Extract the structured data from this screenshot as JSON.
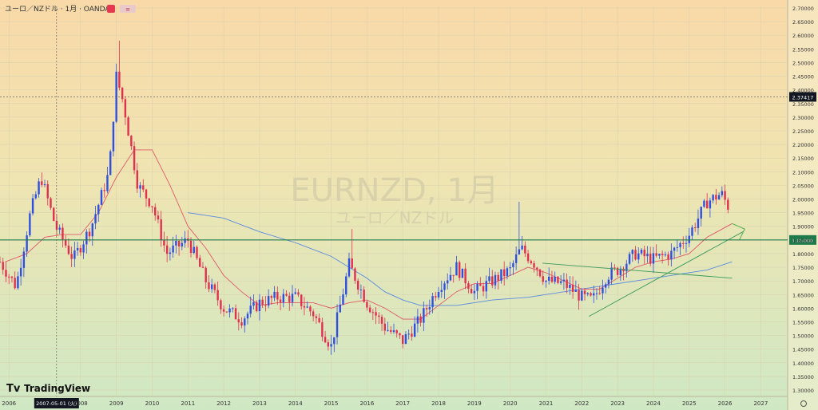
{
  "header": {
    "symbol_title": "ユーロ／NZドル · 1月 · OANDA",
    "badge_text": "≡"
  },
  "watermark": {
    "line1": "EURNZD, 1月",
    "line2": "ユーロ／NZドル"
  },
  "brand": {
    "logo_text": "TradingView"
  },
  "crosshair": {
    "date_label": "2007-05-01 (火)",
    "price_label": "2.37417"
  },
  "colors": {
    "up": "#2f4fe0",
    "down": "#e03050",
    "ma_short": "#e05a6a",
    "ma_long": "#5a8ae0",
    "hline": "#1e7a4a",
    "trend": "#3a9a5a"
  },
  "chart_data": {
    "type": "candlestick",
    "y_axis": {
      "min": 1.3,
      "max": 2.7,
      "ticks": [
        "2.70000",
        "2.65000",
        "2.60000",
        "2.55000",
        "2.50000",
        "2.45000",
        "2.40000",
        "2.35000",
        "2.30000",
        "2.25000",
        "2.20000",
        "2.15000",
        "2.10000",
        "2.05000",
        "2.00000",
        "1.95000",
        "1.90000",
        "1.85000",
        "1.80000",
        "1.75000",
        "1.70000",
        "1.65000",
        "1.60000",
        "1.55000",
        "1.50000",
        "1.45000",
        "1.40000",
        "1.35000",
        "1.30000"
      ]
    },
    "x_axis": {
      "min": 2005.75,
      "max": 2027.75,
      "ticks": [
        "2006",
        "2008",
        "2009",
        "2010",
        "2011",
        "2012",
        "2013",
        "2014",
        "2015",
        "2016",
        "2017",
        "2018",
        "2019",
        "2020",
        "2021",
        "2022",
        "2023",
        "2024",
        "2025",
        "2026",
        "2027"
      ]
    },
    "horizontal_line": {
      "price": 1.85,
      "label": "1.85000"
    },
    "crosshair_price": 2.37417,
    "crosshair_date": 2007.33,
    "yearly_anchors": [
      {
        "x": 2005.75,
        "y": 1.77
      },
      {
        "x": 2006.2,
        "y": 1.68
      },
      {
        "x": 2006.6,
        "y": 1.95
      },
      {
        "x": 2006.9,
        "y": 2.08
      },
      {
        "x": 2007.3,
        "y": 1.9
      },
      {
        "x": 2007.8,
        "y": 1.78
      },
      {
        "x": 2008.3,
        "y": 1.9
      },
      {
        "x": 2008.8,
        "y": 2.1
      },
      {
        "x": 2009.0,
        "y": 2.45
      },
      {
        "x": 2009.2,
        "y": 2.35
      },
      {
        "x": 2009.6,
        "y": 2.05
      },
      {
        "x": 2010.0,
        "y": 1.98
      },
      {
        "x": 2010.4,
        "y": 1.8
      },
      {
        "x": 2011.0,
        "y": 1.85
      },
      {
        "x": 2011.5,
        "y": 1.7
      },
      {
        "x": 2012.0,
        "y": 1.6
      },
      {
        "x": 2012.5,
        "y": 1.56
      },
      {
        "x": 2013.0,
        "y": 1.62
      },
      {
        "x": 2013.5,
        "y": 1.64
      },
      {
        "x": 2014.0,
        "y": 1.64
      },
      {
        "x": 2014.5,
        "y": 1.58
      },
      {
        "x": 2015.0,
        "y": 1.46
      },
      {
        "x": 2015.5,
        "y": 1.76
      },
      {
        "x": 2016.0,
        "y": 1.62
      },
      {
        "x": 2016.5,
        "y": 1.53
      },
      {
        "x": 2017.0,
        "y": 1.48
      },
      {
        "x": 2017.5,
        "y": 1.56
      },
      {
        "x": 2018.0,
        "y": 1.68
      },
      {
        "x": 2018.5,
        "y": 1.75
      },
      {
        "x": 2019.0,
        "y": 1.66
      },
      {
        "x": 2019.5,
        "y": 1.7
      },
      {
        "x": 2020.0,
        "y": 1.74
      },
      {
        "x": 2020.3,
        "y": 1.82
      },
      {
        "x": 2020.7,
        "y": 1.76
      },
      {
        "x": 2021.0,
        "y": 1.7
      },
      {
        "x": 2021.5,
        "y": 1.69
      },
      {
        "x": 2022.0,
        "y": 1.64
      },
      {
        "x": 2022.3,
        "y": 1.63
      },
      {
        "x": 2022.7,
        "y": 1.72
      },
      {
        "x": 2023.0,
        "y": 1.74
      },
      {
        "x": 2023.5,
        "y": 1.8
      },
      {
        "x": 2024.0,
        "y": 1.78
      },
      {
        "x": 2024.5,
        "y": 1.8
      },
      {
        "x": 2025.0,
        "y": 1.87
      },
      {
        "x": 2025.5,
        "y": 1.99
      },
      {
        "x": 2025.9,
        "y": 2.02
      },
      {
        "x": 2026.1,
        "y": 1.97
      }
    ],
    "spikes": [
      {
        "x": 2015.55,
        "high": 1.89
      },
      {
        "x": 2020.25,
        "high": 1.99
      },
      {
        "x": 2009.1,
        "high": 2.58
      }
    ],
    "moving_average_short": [
      {
        "x": 2005.9,
        "y": 1.77
      },
      {
        "x": 2006.5,
        "y": 1.8
      },
      {
        "x": 2007.0,
        "y": 1.86
      },
      {
        "x": 2007.5,
        "y": 1.87
      },
      {
        "x": 2008.0,
        "y": 1.87
      },
      {
        "x": 2008.5,
        "y": 1.95
      },
      {
        "x": 2009.0,
        "y": 2.08
      },
      {
        "x": 2009.5,
        "y": 2.18
      },
      {
        "x": 2010.0,
        "y": 2.18
      },
      {
        "x": 2010.5,
        "y": 2.05
      },
      {
        "x": 2011.0,
        "y": 1.9
      },
      {
        "x": 2011.5,
        "y": 1.82
      },
      {
        "x": 2012.0,
        "y": 1.72
      },
      {
        "x": 2012.5,
        "y": 1.66
      },
      {
        "x": 2013.0,
        "y": 1.61
      },
      {
        "x": 2013.5,
        "y": 1.62
      },
      {
        "x": 2014.0,
        "y": 1.62
      },
      {
        "x": 2014.5,
        "y": 1.62
      },
      {
        "x": 2015.0,
        "y": 1.6
      },
      {
        "x": 2015.5,
        "y": 1.62
      },
      {
        "x": 2016.0,
        "y": 1.63
      },
      {
        "x": 2016.5,
        "y": 1.6
      },
      {
        "x": 2017.0,
        "y": 1.56
      },
      {
        "x": 2017.5,
        "y": 1.56
      },
      {
        "x": 2018.0,
        "y": 1.61
      },
      {
        "x": 2018.5,
        "y": 1.66
      },
      {
        "x": 2019.0,
        "y": 1.69
      },
      {
        "x": 2019.5,
        "y": 1.69
      },
      {
        "x": 2020.0,
        "y": 1.72
      },
      {
        "x": 2020.5,
        "y": 1.75
      },
      {
        "x": 2021.0,
        "y": 1.73
      },
      {
        "x": 2021.5,
        "y": 1.7
      },
      {
        "x": 2022.0,
        "y": 1.67
      },
      {
        "x": 2022.5,
        "y": 1.67
      },
      {
        "x": 2023.0,
        "y": 1.71
      },
      {
        "x": 2023.5,
        "y": 1.75
      },
      {
        "x": 2024.0,
        "y": 1.77
      },
      {
        "x": 2024.5,
        "y": 1.78
      },
      {
        "x": 2025.0,
        "y": 1.8
      },
      {
        "x": 2025.5,
        "y": 1.86
      },
      {
        "x": 2026.2,
        "y": 1.91
      }
    ],
    "moving_average_long": [
      {
        "x": 2011.0,
        "y": 1.95
      },
      {
        "x": 2012.0,
        "y": 1.93
      },
      {
        "x": 2013.0,
        "y": 1.88
      },
      {
        "x": 2014.0,
        "y": 1.84
      },
      {
        "x": 2015.0,
        "y": 1.79
      },
      {
        "x": 2016.0,
        "y": 1.71
      },
      {
        "x": 2016.5,
        "y": 1.66
      },
      {
        "x": 2017.0,
        "y": 1.63
      },
      {
        "x": 2017.5,
        "y": 1.61
      },
      {
        "x": 2018.5,
        "y": 1.61
      },
      {
        "x": 2019.5,
        "y": 1.63
      },
      {
        "x": 2020.5,
        "y": 1.64
      },
      {
        "x": 2021.5,
        "y": 1.66
      },
      {
        "x": 2022.5,
        "y": 1.68
      },
      {
        "x": 2023.5,
        "y": 1.7
      },
      {
        "x": 2024.5,
        "y": 1.72
      },
      {
        "x": 2025.5,
        "y": 1.74
      },
      {
        "x": 2026.2,
        "y": 1.77
      }
    ],
    "trendlines": [
      {
        "x1": 2020.9,
        "y1": 1.765,
        "x2": 2026.2,
        "y2": 1.71
      },
      {
        "x1": 2022.2,
        "y1": 1.57,
        "x2": 2026.5,
        "y2": 1.88
      }
    ],
    "arrow": {
      "x1": 2026.2,
      "y1": 1.91,
      "x2": 2026.55,
      "y2": 1.89,
      "x3": 2026.4,
      "y3": 1.85
    }
  }
}
